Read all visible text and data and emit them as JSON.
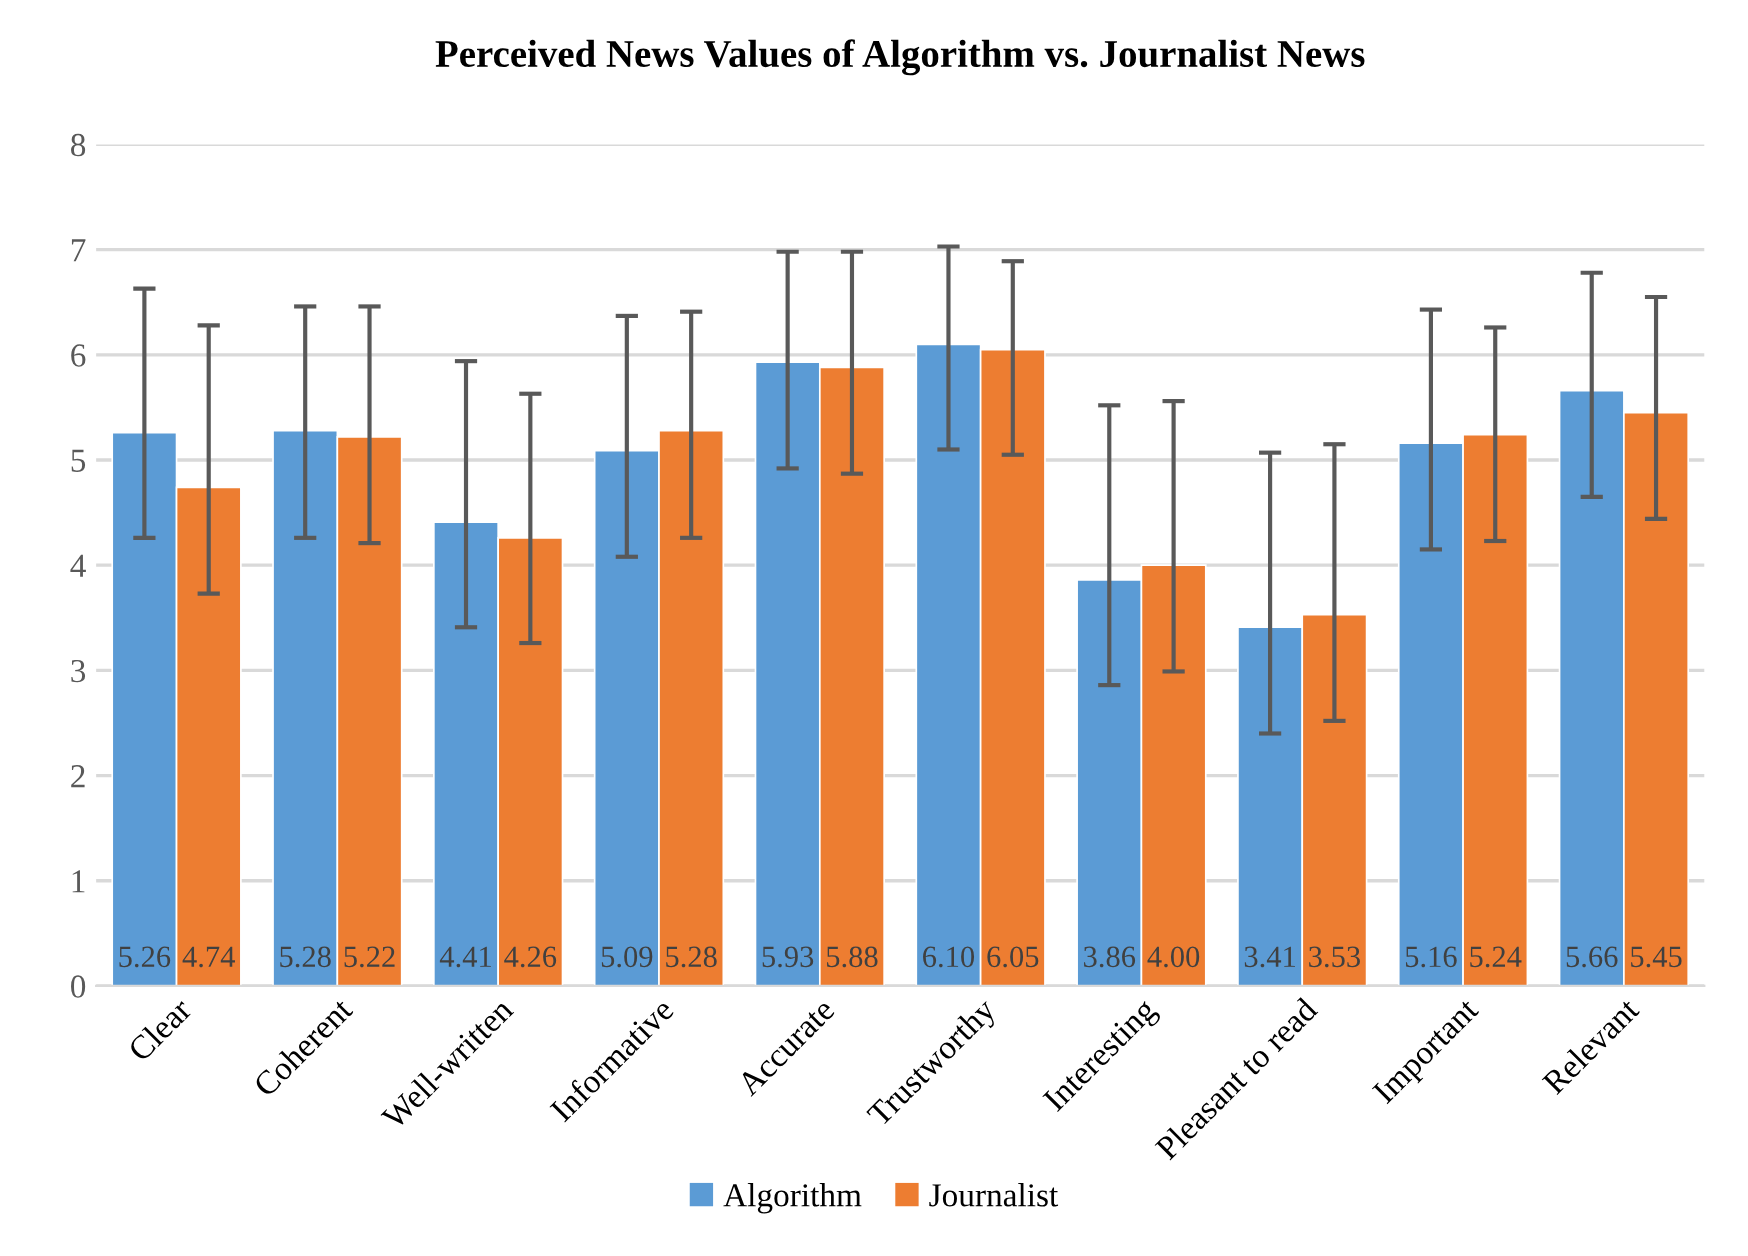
{
  "chart_data": {
    "type": "bar",
    "title": "Perceived News Values of Algorithm vs. Journalist News",
    "categories": [
      "Clear",
      "Coherent",
      "Well-written",
      "Informative",
      "Accurate",
      "Trustworthy",
      "Interesting",
      "Pleasant to read",
      "Important",
      "Relevant"
    ],
    "series": [
      {
        "name": "Algorithm",
        "color": "#5b9bd5",
        "values": [
          5.26,
          5.28,
          4.41,
          5.09,
          5.93,
          6.1,
          3.86,
          3.41,
          5.16,
          5.66
        ],
        "value_labels": [
          "5.26",
          "5.28",
          "4.41",
          "5.09",
          "5.93",
          "6.10",
          "3.86",
          "3.41",
          "5.16",
          "5.66"
        ],
        "errors": [
          [
            4.26,
            6.63
          ],
          [
            4.26,
            6.46
          ],
          [
            3.41,
            5.94
          ],
          [
            4.08,
            6.37
          ],
          [
            4.92,
            6.98
          ],
          [
            5.1,
            7.03
          ],
          [
            2.86,
            5.52
          ],
          [
            2.4,
            5.07
          ],
          [
            4.15,
            6.43
          ],
          [
            4.65,
            6.78
          ]
        ]
      },
      {
        "name": "Journalist",
        "color": "#ed7d31",
        "values": [
          4.74,
          5.22,
          4.26,
          5.28,
          5.88,
          6.05,
          4.0,
          3.53,
          5.24,
          5.45
        ],
        "value_labels": [
          "4.74",
          "5.22",
          "4.26",
          "5.28",
          "5.88",
          "6.05",
          "4.00",
          "3.53",
          "5.24",
          "5.45"
        ],
        "errors": [
          [
            3.73,
            6.28
          ],
          [
            4.21,
            6.46
          ],
          [
            3.26,
            5.63
          ],
          [
            4.26,
            6.41
          ],
          [
            4.87,
            6.98
          ],
          [
            5.05,
            6.89
          ],
          [
            2.99,
            5.56
          ],
          [
            2.52,
            5.15
          ],
          [
            4.23,
            6.26
          ],
          [
            4.44,
            6.55
          ]
        ]
      }
    ],
    "ylim": [
      0,
      8
    ],
    "yticks": [
      0,
      1,
      2,
      3,
      4,
      5,
      6,
      7,
      8
    ],
    "grid": "y",
    "legend": "bottom"
  }
}
